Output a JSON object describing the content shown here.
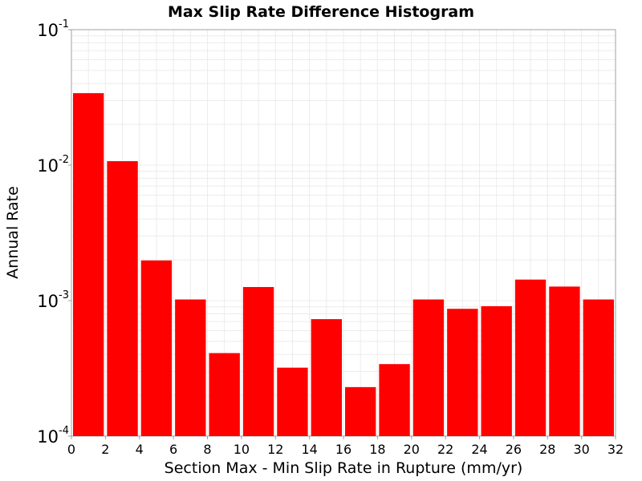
{
  "chart_data": {
    "type": "bar",
    "title": "Max Slip Rate Difference Histogram",
    "xlabel": "Section Max - Min Slip Rate in Rupture (mm/yr)",
    "ylabel": "Annual Rate",
    "xlim": [
      0,
      32
    ],
    "ylim": [
      0.0001,
      0.1
    ],
    "y_scale": "log",
    "grid": true,
    "bar_color": "#ff0000",
    "x_ticks": [
      "0",
      "2",
      "4",
      "6",
      "8",
      "10",
      "12",
      "14",
      "16",
      "18",
      "20",
      "22",
      "24",
      "26",
      "28",
      "30",
      "32"
    ],
    "y_ticks": [
      {
        "base": "10",
        "exp": "-1",
        "value": 0.1
      },
      {
        "base": "10",
        "exp": "-2",
        "value": 0.01
      },
      {
        "base": "10",
        "exp": "-3",
        "value": 0.001
      },
      {
        "base": "10",
        "exp": "-4",
        "value": 0.0001
      }
    ],
    "bins": [
      {
        "x0": 0,
        "x1": 2,
        "value": 0.034
      },
      {
        "x0": 2,
        "x1": 4,
        "value": 0.0107
      },
      {
        "x0": 4,
        "x1": 6,
        "value": 0.00198
      },
      {
        "x0": 6,
        "x1": 8,
        "value": 0.00102
      },
      {
        "x0": 8,
        "x1": 10,
        "value": 0.00041
      },
      {
        "x0": 10,
        "x1": 12,
        "value": 0.00126
      },
      {
        "x0": 12,
        "x1": 14,
        "value": 0.00032
      },
      {
        "x0": 14,
        "x1": 16,
        "value": 0.00073
      },
      {
        "x0": 16,
        "x1": 18,
        "value": 0.00023
      },
      {
        "x0": 18,
        "x1": 20,
        "value": 0.00034
      },
      {
        "x0": 20,
        "x1": 22,
        "value": 0.00102
      },
      {
        "x0": 22,
        "x1": 24,
        "value": 0.00087
      },
      {
        "x0": 24,
        "x1": 26,
        "value": 0.00091
      },
      {
        "x0": 26,
        "x1": 28,
        "value": 0.00143
      },
      {
        "x0": 28,
        "x1": 30,
        "value": 0.00127
      },
      {
        "x0": 30,
        "x1": 32,
        "value": 0.00102
      }
    ]
  }
}
